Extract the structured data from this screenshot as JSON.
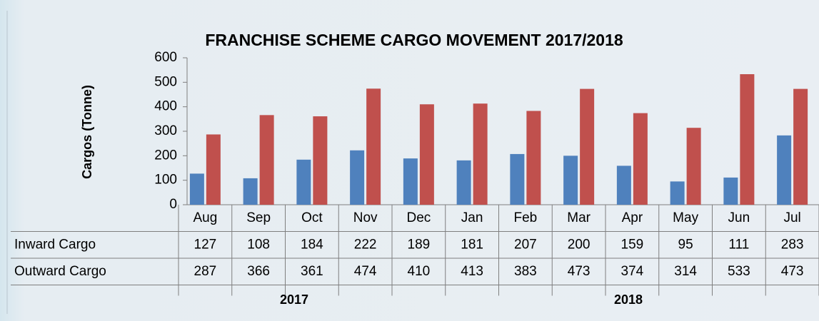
{
  "chart_data": {
    "type": "bar",
    "title": "FRANCHISE SCHEME CARGO MOVEMENT 2017/2018",
    "y_label": "Cargos (Tonne)",
    "categories": [
      "Aug",
      "Sep",
      "Oct",
      "Nov",
      "Dec",
      "Jan",
      "Feb",
      "Mar",
      "Apr",
      "May",
      "Jun",
      "Jul"
    ],
    "x_groups": [
      "2017",
      "2018"
    ],
    "series": [
      {
        "name": "Inward Cargo",
        "color": "#4f81bd",
        "values": [
          127,
          108,
          184,
          222,
          189,
          181,
          207,
          200,
          159,
          95,
          111,
          283
        ]
      },
      {
        "name": "Outward Cargo",
        "color": "#c0504d",
        "values": [
          287,
          366,
          361,
          474,
          410,
          413,
          383,
          473,
          374,
          314,
          533,
          473
        ]
      }
    ],
    "ylim": [
      0,
      600
    ],
    "yticks": [
      0,
      100,
      200,
      300,
      400,
      500,
      600
    ],
    "grid": false,
    "data_table": true
  }
}
